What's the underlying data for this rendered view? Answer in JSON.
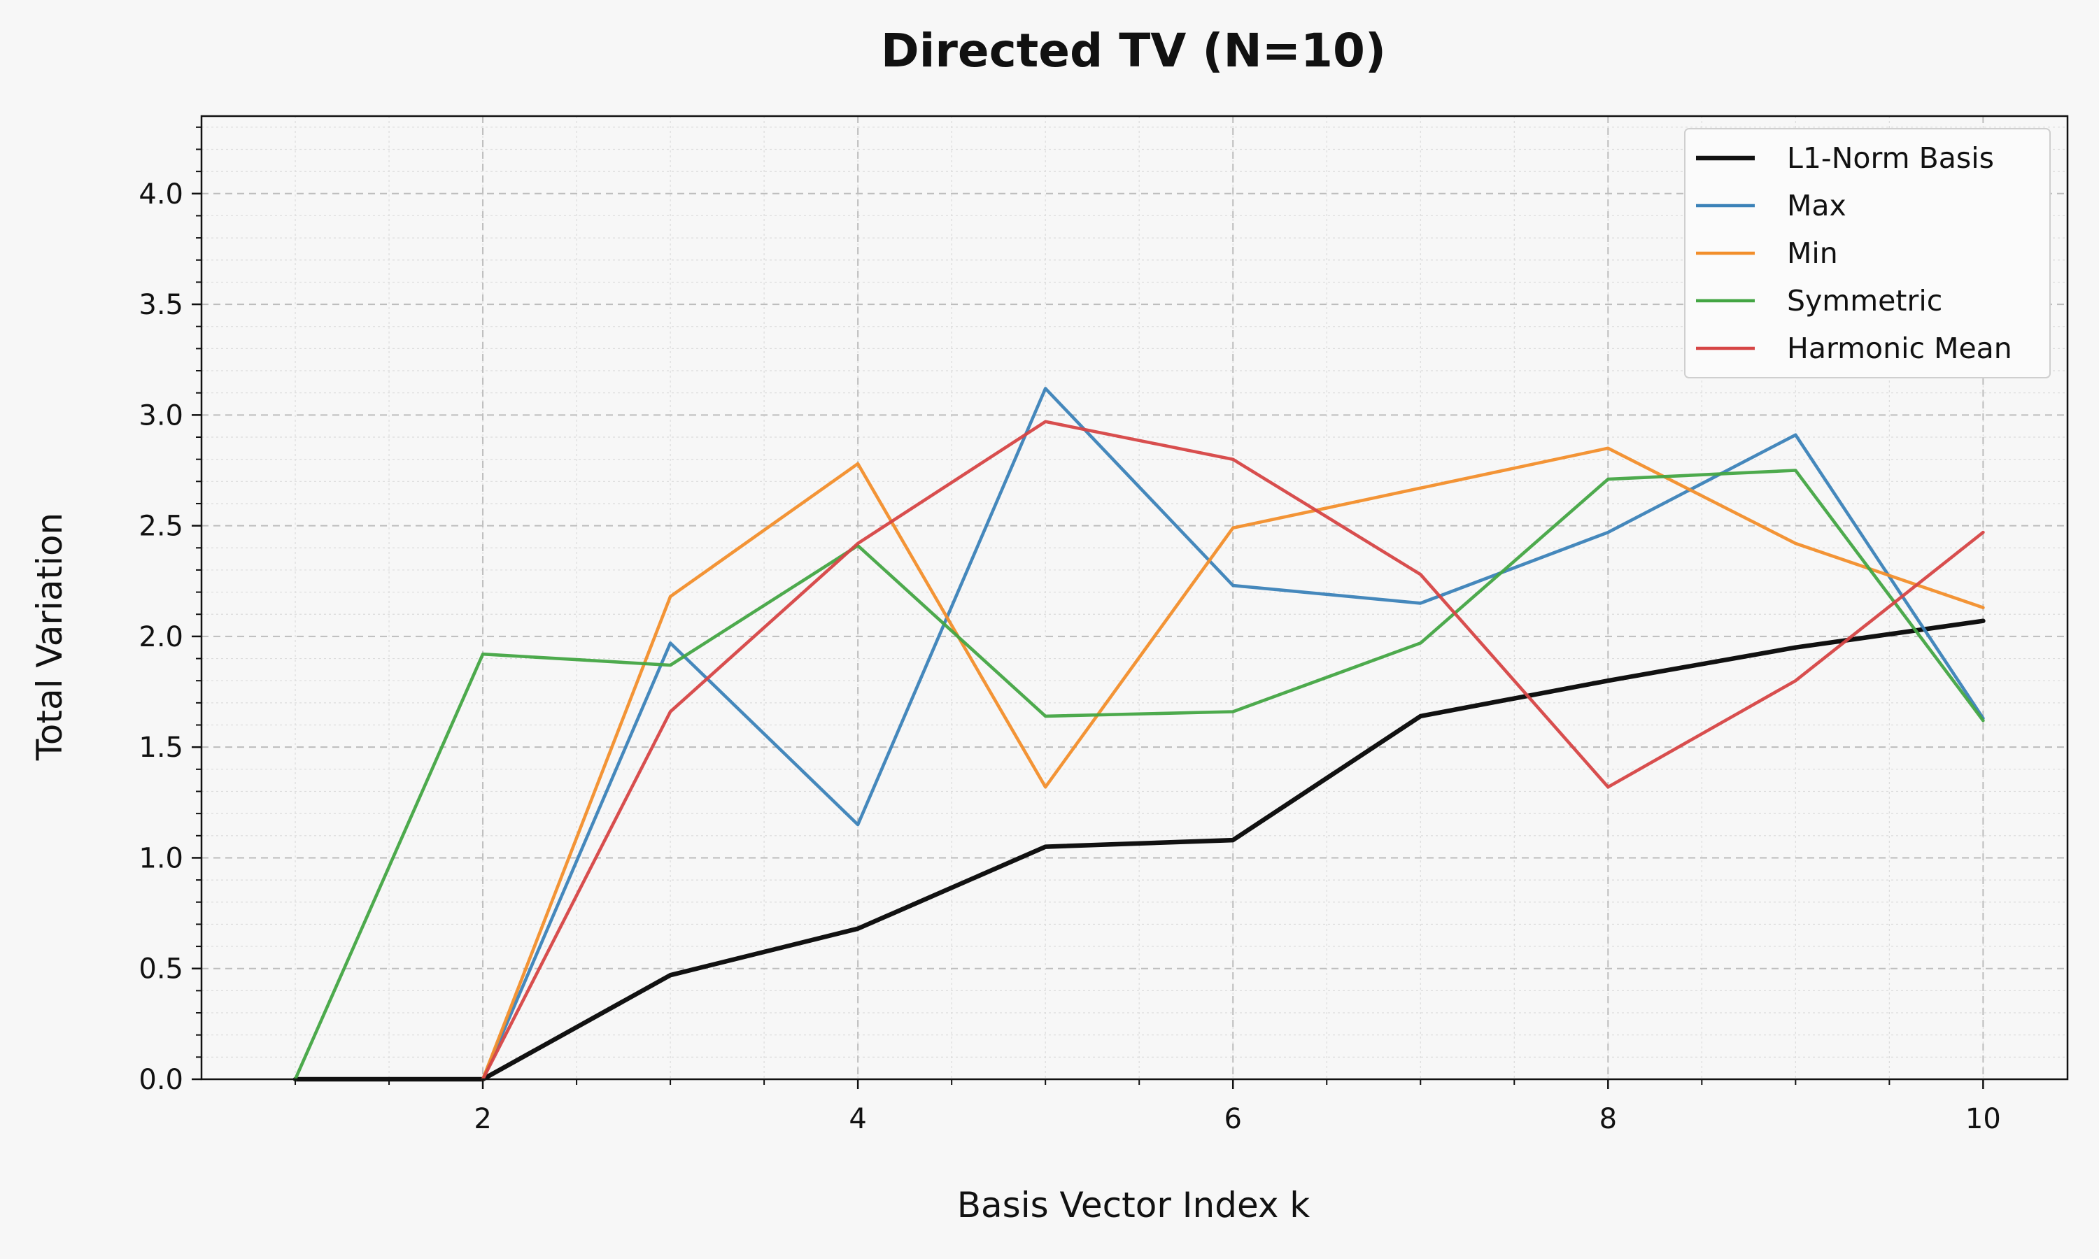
{
  "chart_data": {
    "type": "line",
    "title": "Directed TV (N=10)",
    "xlabel": "Basis Vector Index k",
    "ylabel": "Total Variation",
    "xlim": [
      0.5,
      10.45
    ],
    "ylim": [
      0,
      4.35
    ],
    "xticks": [
      2,
      4,
      6,
      8,
      10
    ],
    "xtick_labels": [
      "2",
      "4",
      "6",
      "8",
      "10"
    ],
    "yticks": [
      0,
      0.5,
      1,
      1.5,
      2,
      2.5,
      3,
      3.5,
      4
    ],
    "ytick_labels": [
      "0.0",
      "0.5",
      "1.0",
      "1.5",
      "2.0",
      "2.5",
      "3.0",
      "3.5",
      "4.0"
    ],
    "grid": true,
    "legend_position": "top-right",
    "x": [
      1,
      2,
      3,
      4,
      5,
      6,
      7,
      8,
      9,
      10
    ],
    "series": [
      {
        "name": "L1-Norm Basis",
        "color": "#111111",
        "values": [
          0,
          0,
          0.47,
          0.68,
          1.05,
          1.08,
          1.64,
          1.8,
          1.95,
          2.07
        ]
      },
      {
        "name": "Max",
        "color": "#3b82b8",
        "values": [
          null,
          0,
          1.97,
          1.15,
          3.12,
          2.23,
          2.15,
          2.47,
          2.91,
          1.63
        ]
      },
      {
        "name": "Min",
        "color": "#f28e2b",
        "values": [
          null,
          0,
          2.18,
          2.78,
          1.32,
          2.49,
          2.67,
          2.85,
          2.42,
          2.13
        ]
      },
      {
        "name": "Symmetric",
        "color": "#43a543",
        "values": [
          0,
          1.92,
          1.87,
          2.41,
          1.64,
          1.66,
          1.97,
          2.71,
          2.75,
          1.62
        ]
      },
      {
        "name": "Harmonic Mean",
        "color": "#d64545",
        "values": [
          null,
          0,
          1.66,
          2.42,
          2.97,
          2.8,
          2.28,
          1.32,
          1.8,
          2.47
        ]
      }
    ]
  }
}
